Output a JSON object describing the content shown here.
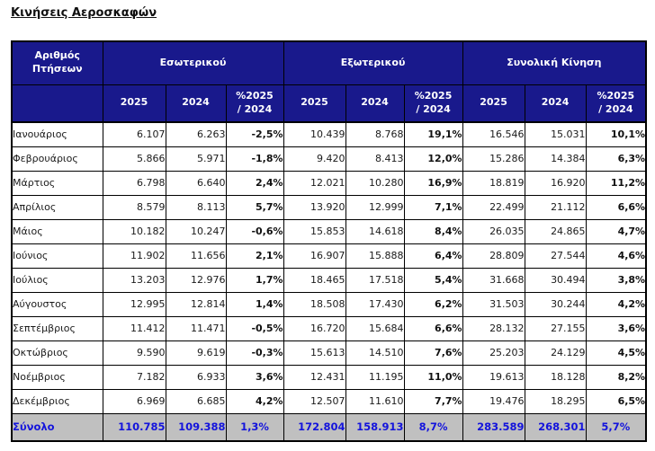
{
  "title": "Κινήσεις Αεροσκαφών",
  "table": {
    "corner_header": "Αριθμός\nΠτήσεων",
    "groups": [
      {
        "label": "Εσωτερικού"
      },
      {
        "label": "Εξωτερικού"
      },
      {
        "label": "Συνολική Κίνηση"
      }
    ],
    "sub_headers": [
      "2025",
      "2024",
      "%2025\n/ 2024"
    ],
    "rows": [
      {
        "month": "Ιανουάριος",
        "cells": [
          "6.107",
          "6.263",
          "-2,5%",
          "10.439",
          "8.768",
          "19,1%",
          "16.546",
          "15.031",
          "10,1%"
        ]
      },
      {
        "month": "Φεβρουάριος",
        "cells": [
          "5.866",
          "5.971",
          "-1,8%",
          "9.420",
          "8.413",
          "12,0%",
          "15.286",
          "14.384",
          "6,3%"
        ]
      },
      {
        "month": "Μάρτιος",
        "cells": [
          "6.798",
          "6.640",
          "2,4%",
          "12.021",
          "10.280",
          "16,9%",
          "18.819",
          "16.920",
          "11,2%"
        ]
      },
      {
        "month": "Απρίλιος",
        "cells": [
          "8.579",
          "8.113",
          "5,7%",
          "13.920",
          "12.999",
          "7,1%",
          "22.499",
          "21.112",
          "6,6%"
        ]
      },
      {
        "month": "Μάιος",
        "cells": [
          "10.182",
          "10.247",
          "-0,6%",
          "15.853",
          "14.618",
          "8,4%",
          "26.035",
          "24.865",
          "4,7%"
        ]
      },
      {
        "month": "Ιούνιος",
        "cells": [
          "11.902",
          "11.656",
          "2,1%",
          "16.907",
          "15.888",
          "6,4%",
          "28.809",
          "27.544",
          "4,6%"
        ]
      },
      {
        "month": "Ιούλιος",
        "cells": [
          "13.203",
          "12.976",
          "1,7%",
          "18.465",
          "17.518",
          "5,4%",
          "31.668",
          "30.494",
          "3,8%"
        ]
      },
      {
        "month": "Αύγουστος",
        "cells": [
          "12.995",
          "12.814",
          "1,4%",
          "18.508",
          "17.430",
          "6,2%",
          "31.503",
          "30.244",
          "4,2%"
        ]
      },
      {
        "month": "Σεπτέμβριος",
        "cells": [
          "11.412",
          "11.471",
          "-0,5%",
          "16.720",
          "15.684",
          "6,6%",
          "28.132",
          "27.155",
          "3,6%"
        ]
      },
      {
        "month": "Οκτώβριος",
        "cells": [
          "9.590",
          "9.619",
          "-0,3%",
          "15.613",
          "14.510",
          "7,6%",
          "25.203",
          "24.129",
          "4,5%"
        ]
      },
      {
        "month": "Νοέμβριος",
        "cells": [
          "7.182",
          "6.933",
          "3,6%",
          "12.431",
          "11.195",
          "11,0%",
          "19.613",
          "18.128",
          "8,2%"
        ]
      },
      {
        "month": "Δεκέμβριος",
        "cells": [
          "6.969",
          "6.685",
          "4,2%",
          "12.507",
          "11.610",
          "7,7%",
          "19.476",
          "18.295",
          "6,5%"
        ]
      }
    ],
    "total": {
      "label": "Σύνολο",
      "cells": [
        "110.785",
        "109.388",
        "1,3%",
        "172.804",
        "158.913",
        "8,7%",
        "283.589",
        "268.301",
        "5,7%"
      ]
    }
  },
  "colors": {
    "header_bg": "#19198C",
    "header_text": "#ffffff",
    "total_bg": "#C0C0C0",
    "total_text": "#1414DC",
    "border": "#000000",
    "body_text": "#1a1a1a"
  }
}
